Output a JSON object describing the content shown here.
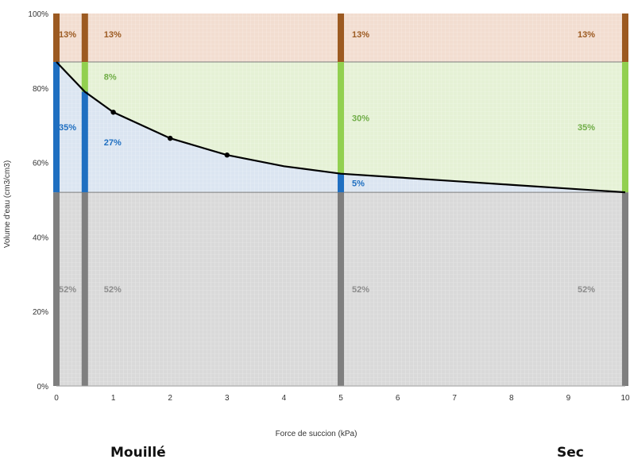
{
  "chart_data": {
    "type": "area",
    "xlabel": "Force de succion (kPa)",
    "ylabel": "Volume d'eau (cm3/cm3)",
    "xlim": [
      0,
      10
    ],
    "ylim": [
      0,
      100
    ],
    "x_ticks": [
      "0",
      "1",
      "2",
      "3",
      "4",
      "5",
      "6",
      "7",
      "8",
      "9",
      "10"
    ],
    "y_ticks": [
      "0%",
      "20%",
      "40%",
      "60%",
      "80%",
      "100%"
    ],
    "grid": true,
    "layers": [
      {
        "name": "solid",
        "from": 0,
        "to": 52,
        "color": "#d9d9d9"
      },
      {
        "name": "water",
        "from": 52,
        "to": 87,
        "color": "#dbe5f1"
      },
      {
        "name": "air",
        "from": 87,
        "to": 100,
        "color": "#f2ddd0"
      }
    ],
    "curve": {
      "x": [
        0,
        0.5,
        1,
        2,
        3,
        4,
        5,
        6,
        7,
        8,
        9,
        10
      ],
      "y": [
        87,
        79,
        73.5,
        66.5,
        62,
        59,
        57,
        56,
        55,
        54,
        53,
        52
      ],
      "markers_x": [
        1,
        2,
        3
      ],
      "color": "#000000"
    },
    "bars": [
      {
        "x": 0,
        "segments": [
          {
            "from": 0,
            "to": 52,
            "label": "52%",
            "color": "#7f7f7f",
            "label_color": "#8c8c8c"
          },
          {
            "from": 52,
            "to": 87,
            "label": "35%",
            "color": "#1f6fc1",
            "label_color": "#1f6fc1"
          },
          {
            "from": 87,
            "to": 100,
            "label": "13%",
            "color": "#9c5a21",
            "label_color": "#9c5a21"
          }
        ]
      },
      {
        "x": 0.5,
        "segments": [
          {
            "from": 0,
            "to": 52,
            "label": "52%",
            "color": "#7f7f7f",
            "label_color": "#8c8c8c"
          },
          {
            "from": 52,
            "to": 79,
            "label": "27%",
            "color": "#1f6fc1",
            "label_color": "#1f6fc1"
          },
          {
            "from": 79,
            "to": 87,
            "label": "8%",
            "color": "#92d050",
            "label_color": "#70ad47"
          },
          {
            "from": 87,
            "to": 100,
            "label": "13%",
            "color": "#9c5a21",
            "label_color": "#9c5a21"
          }
        ]
      },
      {
        "x": 5,
        "segments": [
          {
            "from": 0,
            "to": 52,
            "label": "52%",
            "color": "#7f7f7f",
            "label_color": "#8c8c8c"
          },
          {
            "from": 52,
            "to": 57,
            "label": "5%",
            "color": "#1f6fc1",
            "label_color": "#1f6fc1"
          },
          {
            "from": 57,
            "to": 87,
            "label": "30%",
            "color": "#92d050",
            "label_color": "#70ad47"
          },
          {
            "from": 87,
            "to": 100,
            "label": "13%",
            "color": "#9c5a21",
            "label_color": "#9c5a21"
          }
        ]
      },
      {
        "x": 10,
        "segments": [
          {
            "from": 0,
            "to": 52,
            "label": "52%",
            "color": "#7f7f7f",
            "label_color": "#8c8c8c"
          },
          {
            "from": 52,
            "to": 87,
            "label": "35%",
            "color": "#92d050",
            "label_color": "#70ad47"
          },
          {
            "from": 87,
            "to": 100,
            "label": "13%",
            "color": "#9c5a21",
            "label_color": "#9c5a21"
          }
        ]
      }
    ],
    "annotations": {
      "left": "Mouillé",
      "right": "Sec"
    }
  }
}
